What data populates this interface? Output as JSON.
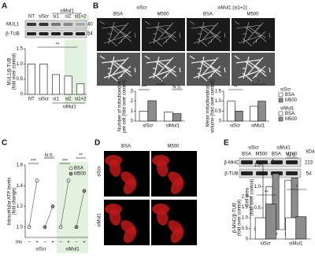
{
  "panels": [
    "A",
    "B",
    "C",
    "D",
    "E"
  ],
  "blot_a": {
    "header": "siMul1",
    "lanes": [
      "NT",
      "siScr",
      "si1",
      "si2",
      "si1+2"
    ],
    "bands": [
      "MUL1",
      "β-TUB"
    ],
    "kda": [
      "40",
      "54"
    ]
  },
  "images_b": {
    "groups": [
      "siScr",
      "siMul1 (si1+2)"
    ],
    "conditions": [
      "BSA",
      "M500",
      "BSA",
      "M500"
    ]
  },
  "images_d": {
    "conditions": [
      "BSA",
      "M500"
    ],
    "rows": [
      "siScr",
      "siMul1"
    ]
  },
  "blot_e": {
    "kda_label": "kDa",
    "groups": [
      "siScr",
      "siMul1"
    ],
    "conditions": [
      "BSA",
      "M500",
      "BSA",
      "M500"
    ],
    "bands": [
      "β-MHC",
      "β-TUB"
    ],
    "kda": [
      "223",
      "54"
    ]
  },
  "chart_data": [
    {
      "type": "bar",
      "ylabel": [
        "MUL1/β-TUB",
        "(fold over control)"
      ],
      "categories": [
        "NT",
        "siScr",
        "si1",
        "si2",
        "si1+2"
      ],
      "values": [
        1.0,
        1.0,
        0.65,
        0.6,
        0.35
      ],
      "color": "#ffffff",
      "ylim": [
        0,
        1.5
      ],
      "yticks": [
        0,
        {
          "value": 0.5,
          "label": "0.5"
        },
        {
          "value": 1.0,
          "label": "1.0"
        },
        {
          "value": 1.5,
          "label": "1.5"
        }
      ],
      "group_label": "siMul1",
      "annotations": [
        "**"
      ]
    },
    {
      "type": "grouped_bar",
      "ylabel": [
        "Number of mitochondria",
        "per cell (fold over control)"
      ],
      "categories": [
        "siScr",
        "siMul1"
      ],
      "series": [
        {
          "name": "BSA",
          "color": "#ffffff",
          "values": [
            1.0,
            0.9
          ]
        },
        {
          "name": "M500",
          "color": "#8c8c8c",
          "values": [
            2.05,
            0.75
          ]
        }
      ],
      "ylim": [
        0,
        3
      ],
      "yticks": [
        0,
        1,
        2,
        3
      ],
      "annotations": [
        "***",
        "*",
        "N.S."
      ]
    },
    {
      "type": "grouped_bar",
      "ylabel": [
        "Mean mitochondrial",
        "volume (fold over control)"
      ],
      "categories": [
        "siScr",
        "siMul1"
      ],
      "series": [
        {
          "name": "BSA",
          "color": "#ffffff",
          "values": [
            1.0,
            0.75
          ]
        },
        {
          "name": "M500",
          "color": "#8c8c8c",
          "values": [
            0.5,
            1.0
          ]
        }
      ],
      "ylim": [
        0,
        1.5
      ],
      "yticks": [
        0,
        {
          "value": 0.5,
          "label": "0.5"
        },
        {
          "value": 1.0,
          "label": "1.0"
        },
        {
          "value": 1.5,
          "label": "1.5"
        }
      ],
      "legend_groups": [
        "siScr",
        "siMul1"
      ],
      "annotations": [
        "**",
        "*"
      ]
    },
    {
      "type": "paired",
      "ylabel": [
        "Intracellular ATP levels",
        "(fold change)"
      ],
      "x_label": "Ins",
      "groups": [
        "siScr",
        "siMul1"
      ],
      "categories": [
        "−",
        "+",
        "−",
        "+",
        "−",
        "+",
        "−",
        "+"
      ],
      "series": [
        {
          "name": "BSA",
          "color": "#ffffff",
          "values": [
            1.0,
            1.45,
            null,
            null,
            1.0,
            1.45,
            null,
            null
          ]
        },
        {
          "name": "M500",
          "color": "#8c8c8c",
          "values": [
            null,
            null,
            1.0,
            1.2,
            null,
            null,
            1.0,
            1.35
          ]
        }
      ],
      "ylim": [
        0.9,
        1.6
      ],
      "yticks": [
        {
          "value": 1.0,
          "label": "1.0"
        },
        {
          "value": 1.2,
          "label": "1.2"
        },
        {
          "value": 1.4,
          "label": "1.4"
        },
        {
          "value": 1.6,
          "label": "1.6"
        }
      ],
      "annotations": [
        "***",
        "N.S.",
        "***",
        "**"
      ]
    },
    {
      "type": "grouped_bar",
      "ylabel": [
        "Cell area",
        "(fold over control)"
      ],
      "categories": [
        "siScr",
        "siMul1"
      ],
      "series": [
        {
          "name": "BSA",
          "color": "#ffffff",
          "values": [
            1.0,
            1.15
          ]
        },
        {
          "name": "M500",
          "color": "#8c8c8c",
          "values": [
            1.3,
            1.2
          ]
        }
      ],
      "ylim": [
        0,
        1.5
      ],
      "yticks": [
        {
          "value": 0,
          "label": "0.0"
        },
        {
          "value": 0.5,
          "label": "0.5"
        },
        {
          "value": 1.0,
          "label": "1.0"
        },
        {
          "value": 1.5,
          "label": "1.5"
        }
      ],
      "annotations": [
        "*",
        "N.S."
      ]
    },
    {
      "type": "grouped_bar",
      "ylabel": [
        "β-MHC/β-TUB",
        "(fold over control)"
      ],
      "categories": [
        "siScr",
        "siMul1"
      ],
      "series": [
        {
          "name": "BSA",
          "color": "#ffffff",
          "values": [
            1.0,
            1.0
          ]
        },
        {
          "name": "M500",
          "color": "#8c8c8c",
          "values": [
            1.65,
            1.05
          ]
        }
      ],
      "ylim": [
        0,
        2.0
      ],
      "yticks": [
        0,
        {
          "value": 0.5,
          "label": "0.5"
        },
        {
          "value": 1.0,
          "label": "1.0"
        },
        {
          "value": 1.5,
          "label": "1.5"
        },
        {
          "value": 2.0,
          "label": "2.0"
        }
      ],
      "annotations": [
        "**",
        "*"
      ]
    }
  ]
}
